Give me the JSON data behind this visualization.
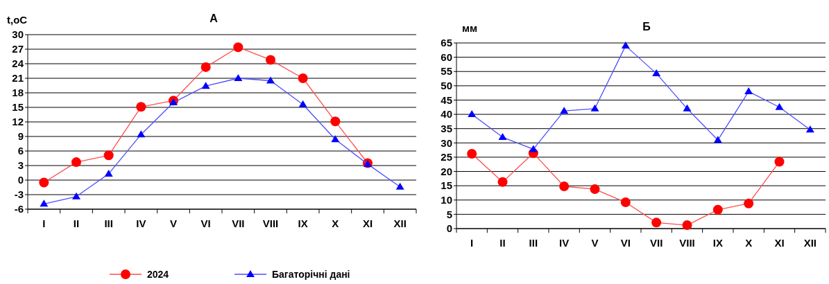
{
  "chart_data": [
    {
      "type": "line",
      "title": "А",
      "ylabel": "t,oC",
      "categories": [
        "I",
        "II",
        "III",
        "IV",
        "V",
        "VI",
        "VII",
        "VIII",
        "IX",
        "X",
        "XI",
        "XII"
      ],
      "ylim": [
        -6,
        30
      ],
      "yticks": [
        -6,
        -3,
        0,
        3,
        6,
        9,
        12,
        15,
        18,
        21,
        24,
        27,
        30
      ],
      "grid": "y",
      "legend": "bottom",
      "series": [
        {
          "name": "2024",
          "color": "#ff0000",
          "marker": "circle",
          "values": [
            -0.5,
            3.7,
            5.1,
            15.1,
            16.4,
            23.3,
            27.4,
            24.8,
            21.0,
            12.1,
            3.5,
            null
          ]
        },
        {
          "name": "Багаторічні дані",
          "color": "#0000ff",
          "marker": "triangle",
          "values": [
            -4.9,
            -3.4,
            1.3,
            9.4,
            16.0,
            19.4,
            21.0,
            20.5,
            15.6,
            8.4,
            3.3,
            -1.4
          ]
        }
      ]
    },
    {
      "type": "line",
      "title": "Б",
      "ylabel": "мм",
      "categories": [
        "I",
        "II",
        "III",
        "IV",
        "V",
        "VI",
        "VII",
        "VIII",
        "IX",
        "X",
        "XI",
        "XII"
      ],
      "ylim": [
        0,
        65
      ],
      "yticks": [
        0,
        5,
        10,
        15,
        20,
        25,
        30,
        35,
        40,
        45,
        50,
        55,
        60,
        65
      ],
      "grid": "y",
      "series": [
        {
          "color": "#ff0000",
          "marker": "circle",
          "values": [
            26.2,
            16.3,
            26.4,
            14.8,
            13.8,
            9.2,
            2.1,
            1.2,
            6.6,
            8.8,
            23.4,
            null
          ]
        },
        {
          "color": "#0000ff",
          "marker": "triangle",
          "values": [
            40,
            32,
            27.8,
            41.2,
            42,
            64,
            54.3,
            42,
            31,
            48,
            42.5,
            34.6
          ]
        }
      ]
    }
  ]
}
